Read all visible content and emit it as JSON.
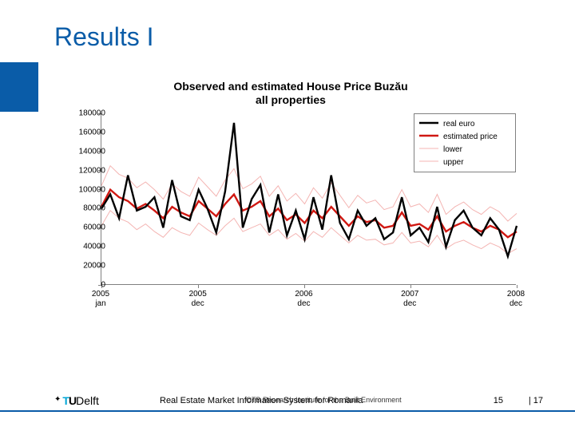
{
  "slide": {
    "title": "Results I",
    "accent_color": "#0a5ca8"
  },
  "chart": {
    "type": "line",
    "title_line1": "Observed and estimated House Price Buzău",
    "title_line2": "all properties",
    "title_fontsize": 14,
    "background_color": "#ffffff",
    "axis_color": "#808080",
    "label_fontsize": 10,
    "ylim": [
      0,
      180000
    ],
    "ytick_step": 20000,
    "yticks": [
      0,
      20000,
      40000,
      60000,
      80000,
      100000,
      120000,
      140000,
      160000,
      180000
    ],
    "xticks": [
      {
        "pos": 0,
        "top": "2005",
        "bottom": "jan"
      },
      {
        "pos": 11,
        "top": "2005",
        "bottom": "dec"
      },
      {
        "pos": 23,
        "top": "2006",
        "bottom": "dec"
      },
      {
        "pos": 35,
        "top": "2007",
        "bottom": "dec"
      },
      {
        "pos": 47,
        "top": "2008",
        "bottom": "dec"
      }
    ],
    "n_points": 48,
    "series": [
      {
        "name": "real euro",
        "color": "#000000",
        "width": 2.4,
        "values": [
          80000,
          95000,
          70000,
          115000,
          78000,
          82000,
          92000,
          60000,
          110000,
          72000,
          68000,
          100000,
          80000,
          55000,
          98000,
          170000,
          60000,
          90000,
          105000,
          55000,
          95000,
          52000,
          78000,
          48000,
          92000,
          58000,
          115000,
          65000,
          48000,
          78000,
          62000,
          70000,
          48000,
          55000,
          92000,
          52000,
          60000,
          45000,
          82000,
          40000,
          68000,
          78000,
          60000,
          52000,
          70000,
          58000,
          30000,
          62000
        ]
      },
      {
        "name": "estimated price",
        "color": "#d01812",
        "width": 2.4,
        "values": [
          82000,
          100000,
          92000,
          88000,
          80000,
          85000,
          78000,
          70000,
          82000,
          76000,
          72000,
          88000,
          80000,
          72000,
          85000,
          95000,
          78000,
          82000,
          88000,
          72000,
          80000,
          68000,
          74000,
          65000,
          78000,
          70000,
          82000,
          72000,
          62000,
          72000,
          66000,
          68000,
          60000,
          62000,
          76000,
          62000,
          64000,
          58000,
          72000,
          56000,
          62000,
          66000,
          60000,
          56000,
          62000,
          58000,
          50000,
          56000
        ]
      },
      {
        "name": "lower",
        "color": "#f4b5b3",
        "width": 1.0,
        "values": [
          62000,
          78000,
          70000,
          66000,
          58000,
          64000,
          56000,
          50000,
          60000,
          55000,
          52000,
          65000,
          58000,
          52000,
          62000,
          70000,
          56000,
          60000,
          64000,
          52000,
          58000,
          48000,
          54000,
          46000,
          56000,
          50000,
          60000,
          52000,
          44000,
          52000,
          47000,
          48000,
          42000,
          44000,
          55000,
          44000,
          46000,
          40000,
          52000,
          38000,
          44000,
          47000,
          42000,
          38000,
          44000,
          40000,
          33000,
          38000
        ]
      },
      {
        "name": "upper",
        "color": "#f4b5b3",
        "width": 1.0,
        "values": [
          104000,
          125000,
          116000,
          112000,
          102000,
          108000,
          100000,
          90000,
          106000,
          98000,
          93000,
          113000,
          103000,
          93000,
          110000,
          122000,
          101000,
          106000,
          114000,
          93000,
          104000,
          88000,
          96000,
          85000,
          102000,
          91000,
          107000,
          94000,
          81000,
          94000,
          86000,
          89000,
          79000,
          82000,
          100000,
          82000,
          85000,
          76000,
          95000,
          74000,
          82000,
          87000,
          79000,
          74000,
          82000,
          77000,
          67000,
          75000
        ]
      }
    ],
    "legend": {
      "border_color": "#808080",
      "background": "#ffffff"
    }
  },
  "footer": {
    "logo_text": "Delft",
    "center_main": "Real Estate Market Information System for Romania",
    "center_overlay": "OTB Research Institute for the Built Environment",
    "num1": "15",
    "num2": "| 17",
    "rule_color": "#0a5ca8"
  }
}
